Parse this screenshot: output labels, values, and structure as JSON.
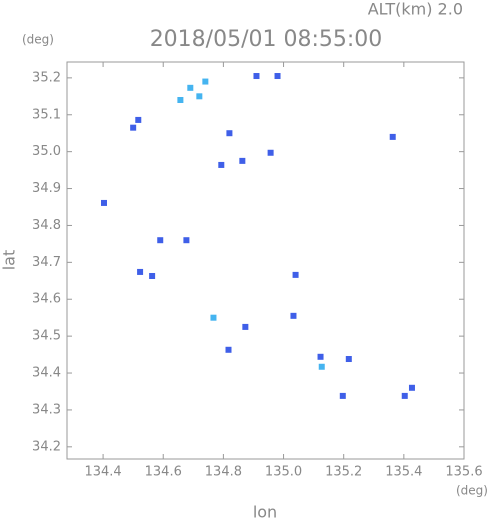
{
  "chart_data": {
    "type": "scatter",
    "title": "2018/05/01 08:55:00",
    "subtitle": "ALT(km) 2.0",
    "x_label": "lon",
    "y_label": "lat",
    "x_unit": "(deg)",
    "y_unit": "(deg)",
    "xlim": [
      134.28,
      135.6
    ],
    "ylim": [
      34.167,
      35.243
    ],
    "xticks": [
      134.4,
      134.6,
      134.8,
      {
        "value": 135.0,
        "label": "135.0"
      },
      135.2,
      135.4,
      135.6
    ],
    "yticks": [
      34.2,
      34.3,
      34.4,
      34.5,
      34.6,
      34.7,
      34.8,
      34.9,
      {
        "value": 35.0,
        "label": "35.0"
      },
      35.1,
      35.2
    ],
    "series": [
      {
        "color": "#3f5fe8",
        "x": [
          134.517,
          134.5,
          134.91,
          134.98,
          134.82,
          134.793,
          134.863,
          134.957,
          135.363,
          134.403,
          134.59,
          134.677,
          134.523,
          134.563,
          135.04,
          134.873,
          134.817,
          135.033,
          135.123,
          135.217,
          135.197,
          135.427,
          135.403
        ],
        "values": [
          35.086,
          35.065,
          35.205,
          35.205,
          35.05,
          34.964,
          34.975,
          34.997,
          35.04,
          34.861,
          34.76,
          34.76,
          34.674,
          34.663,
          34.666,
          34.525,
          34.463,
          34.555,
          34.444,
          34.438,
          34.338,
          34.36,
          34.338
        ]
      },
      {
        "color": "#45b4f0",
        "x": [
          134.69,
          134.657,
          134.72,
          134.74,
          134.767,
          135.127
        ],
        "values": [
          35.173,
          35.14,
          35.15,
          35.19,
          34.55,
          34.417
        ]
      }
    ]
  }
}
